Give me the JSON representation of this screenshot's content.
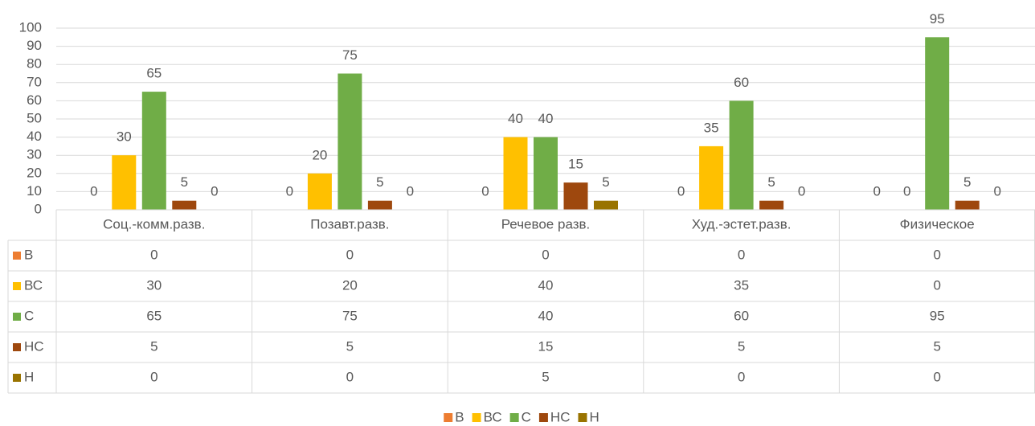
{
  "chart_data": {
    "type": "bar",
    "categories": [
      "Соц.-комм.разв.",
      "Позавт.разв.",
      "Речевое разв.",
      "Худ.-эстет.разв.",
      "Физическое"
    ],
    "series": [
      {
        "name": "В",
        "color": "#ed7d31",
        "values": [
          0,
          0,
          0,
          0,
          0
        ]
      },
      {
        "name": "ВС",
        "color": "#ffc000",
        "values": [
          30,
          20,
          40,
          35,
          0
        ]
      },
      {
        "name": "С",
        "color": "#70ad47",
        "values": [
          65,
          75,
          40,
          60,
          95
        ]
      },
      {
        "name": "НС",
        "color": "#9e480e",
        "values": [
          5,
          5,
          15,
          5,
          5
        ]
      },
      {
        "name": "Н",
        "color": "#997300",
        "values": [
          0,
          0,
          5,
          0,
          0
        ]
      }
    ],
    "ylim": [
      0,
      100
    ],
    "yticks": [
      0,
      10,
      20,
      30,
      40,
      50,
      60,
      70,
      80,
      90,
      100
    ],
    "grid": true,
    "data_table": true,
    "legend": "bottom"
  }
}
